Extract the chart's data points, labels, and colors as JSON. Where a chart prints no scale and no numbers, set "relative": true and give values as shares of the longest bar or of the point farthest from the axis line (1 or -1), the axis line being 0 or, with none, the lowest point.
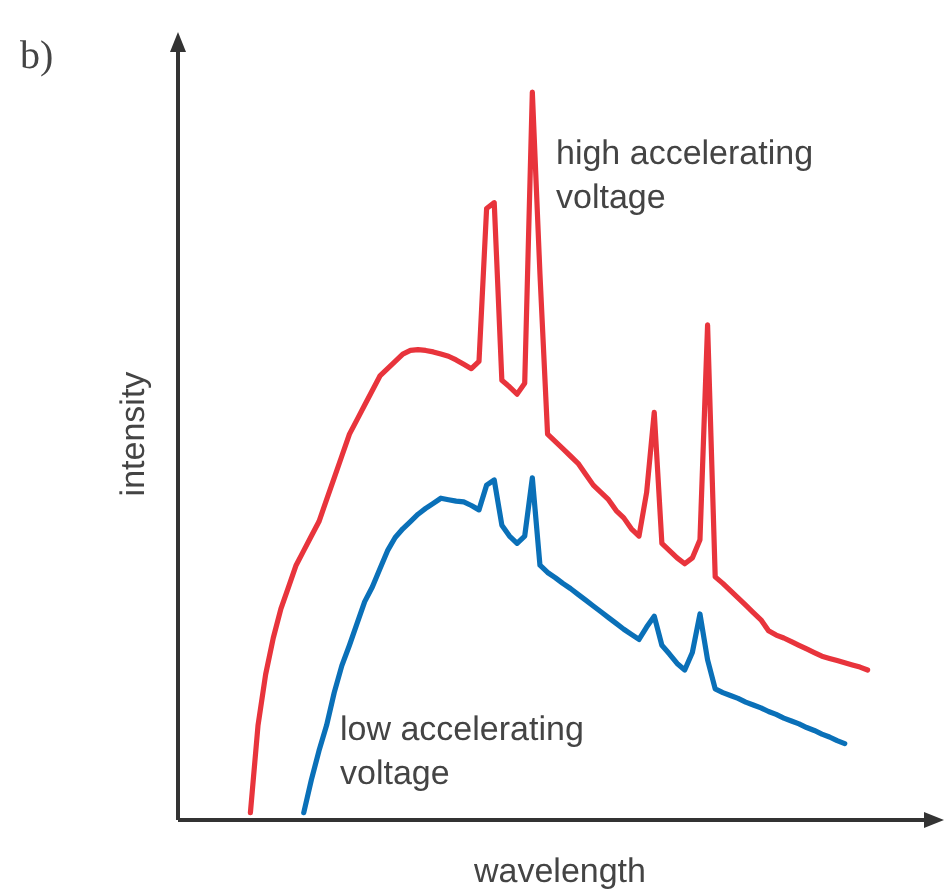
{
  "chart_data": {
    "type": "line",
    "relative": true,
    "xlabel": "wavelength",
    "ylabel": "intensity",
    "annotations": [
      "b)"
    ],
    "marker": "none",
    "line_style": "solid",
    "categories": [
      null,
      null,
      null,
      null,
      null,
      null,
      null,
      null,
      null,
      null,
      null,
      null,
      null,
      null,
      null,
      null,
      null,
      null,
      null,
      null,
      null,
      null,
      null,
      null,
      null,
      null,
      null,
      null,
      null,
      null,
      null,
      null,
      null,
      null,
      null,
      null,
      null,
      null,
      null,
      null,
      null,
      null,
      null,
      null,
      null,
      null,
      null,
      null,
      null,
      null,
      null,
      null,
      null,
      null,
      null,
      null,
      null,
      null,
      null,
      null,
      null,
      null,
      null,
      null,
      null,
      null,
      null,
      null,
      null,
      null,
      null,
      null,
      null,
      null,
      null,
      null,
      null,
      null,
      null,
      null,
      null,
      null
    ],
    "series": [
      {
        "name": "high accelerating voltage",
        "color": "#e8343c",
        "values": [
          0.01,
          0.13,
          0.2,
          0.25,
          0.29,
          0.32,
          0.35,
          0.37,
          0.39,
          0.41,
          0.44,
          0.47,
          0.5,
          0.53,
          0.55,
          0.57,
          0.59,
          0.61,
          0.62,
          0.63,
          0.64,
          0.645,
          0.646,
          0.645,
          0.643,
          0.64,
          0.637,
          0.632,
          0.626,
          0.62,
          0.63,
          0.84,
          0.848,
          0.604,
          0.595,
          0.585,
          0.6,
          1,
          0.75,
          0.53,
          0.52,
          0.51,
          0.5,
          0.49,
          0.475,
          0.46,
          0.45,
          0.44,
          0.425,
          0.415,
          0.4,
          0.39,
          0.45,
          0.56,
          0.38,
          0.37,
          0.36,
          0.352,
          0.36,
          0.385,
          0.68,
          0.334,
          0.325,
          0.315,
          0.305,
          0.295,
          0.285,
          0.275,
          0.26,
          0.254,
          0.25,
          0.245,
          0.24,
          0.235,
          0.23,
          0.225,
          0.222,
          0.219,
          0.216,
          0.213,
          0.21,
          0.206
        ]
      },
      {
        "name": "low accelerating voltage",
        "color": "#0a70b8",
        "values": [
          null,
          null,
          null,
          null,
          null,
          null,
          null,
          0.01,
          0.055,
          0.095,
          0.13,
          0.175,
          0.212,
          0.24,
          0.27,
          0.3,
          0.32,
          0.345,
          0.37,
          0.388,
          0.4,
          0.41,
          0.42,
          0.428,
          0.435,
          0.442,
          0.44,
          0.438,
          0.437,
          0.432,
          0.426,
          0.46,
          0.467,
          0.405,
          0.39,
          0.38,
          0.39,
          0.47,
          0.35,
          0.34,
          0.333,
          0.325,
          0.318,
          0.31,
          0.302,
          0.294,
          0.286,
          0.278,
          0.27,
          0.262,
          0.255,
          0.248,
          0.265,
          0.28,
          0.24,
          0.228,
          0.215,
          0.206,
          0.23,
          0.283,
          0.22,
          0.18,
          0.175,
          0.171,
          0.167,
          0.162,
          0.158,
          0.154,
          0.149,
          0.145,
          0.14,
          0.136,
          0.132,
          0.127,
          0.123,
          0.118,
          0.114,
          0.109,
          0.105,
          null,
          null,
          null
        ]
      }
    ]
  }
}
